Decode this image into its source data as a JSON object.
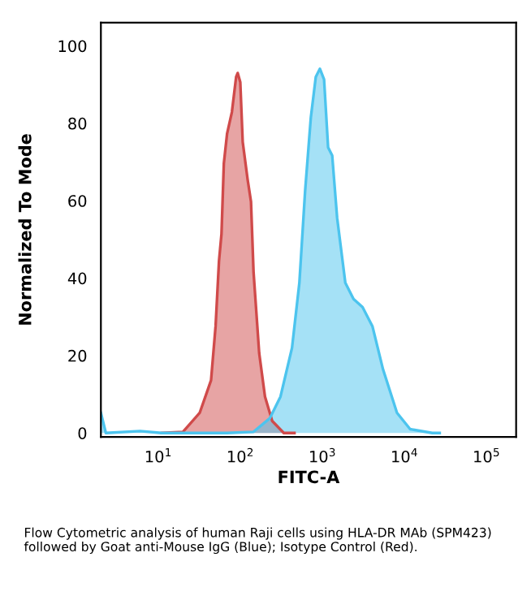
{
  "chart_data": {
    "type": "area",
    "xlabel": "FITC-A",
    "ylabel": "Normalized To Mode",
    "log": "x",
    "xlim": [
      2.0,
      230000
    ],
    "ylim": [
      -1,
      106
    ],
    "xticks": [
      {
        "value": 10,
        "label": "10$^{1}$"
      },
      {
        "value": 100,
        "label": "10$^{2}$"
      },
      {
        "value": 1000,
        "label": "10$^{3}$"
      },
      {
        "value": 10000,
        "label": "10$^{4}$"
      },
      {
        "value": 100000,
        "label": "10$^{5}$"
      }
    ],
    "yticks": [
      0,
      20,
      40,
      60,
      80,
      100
    ],
    "grid": false,
    "legend": false,
    "series": [
      {
        "color": "#d04a4a",
        "x": [
          11,
          20,
          32,
          44,
          50,
          55,
          59,
          63,
          69,
          79,
          89,
          93,
          100,
          107,
          123,
          135,
          145,
          170,
          200,
          245,
          339,
          457
        ],
        "values": [
          0,
          0.3,
          5.2,
          13.6,
          27.6,
          44.4,
          51.4,
          69.6,
          77.3,
          82.9,
          92,
          93,
          90.6,
          75.2,
          65.4,
          59.8,
          41.6,
          20.6,
          9.4,
          3.1,
          0,
          0
        ]
      },
      {
        "color": "#4cc4ee",
        "x": [
          2.0,
          2.3,
          6,
          11,
          69,
          145,
          229,
          309,
          427,
          525,
          617,
          724,
          832,
          933,
          1050,
          1175,
          1318,
          1514,
          1905,
          2399,
          3090,
          4074,
          5495,
          8128,
          11750,
          21880,
          26920
        ],
        "values": [
          5.2,
          0,
          0.5,
          0,
          0,
          0.3,
          3.8,
          9.4,
          22,
          38.8,
          62.6,
          81.5,
          92,
          94.1,
          91.3,
          73.8,
          71.7,
          55.6,
          38.8,
          34.6,
          32.5,
          27.6,
          16.4,
          5.2,
          1.0,
          0,
          0
        ]
      }
    ],
    "annotations": [
      "Flow Cytometric analysis of human Raji cells using HLA-DR MAb (SPM423) followed by Goat anti-Mouse IgG (Blue); Isotype Control (Red)."
    ]
  }
}
